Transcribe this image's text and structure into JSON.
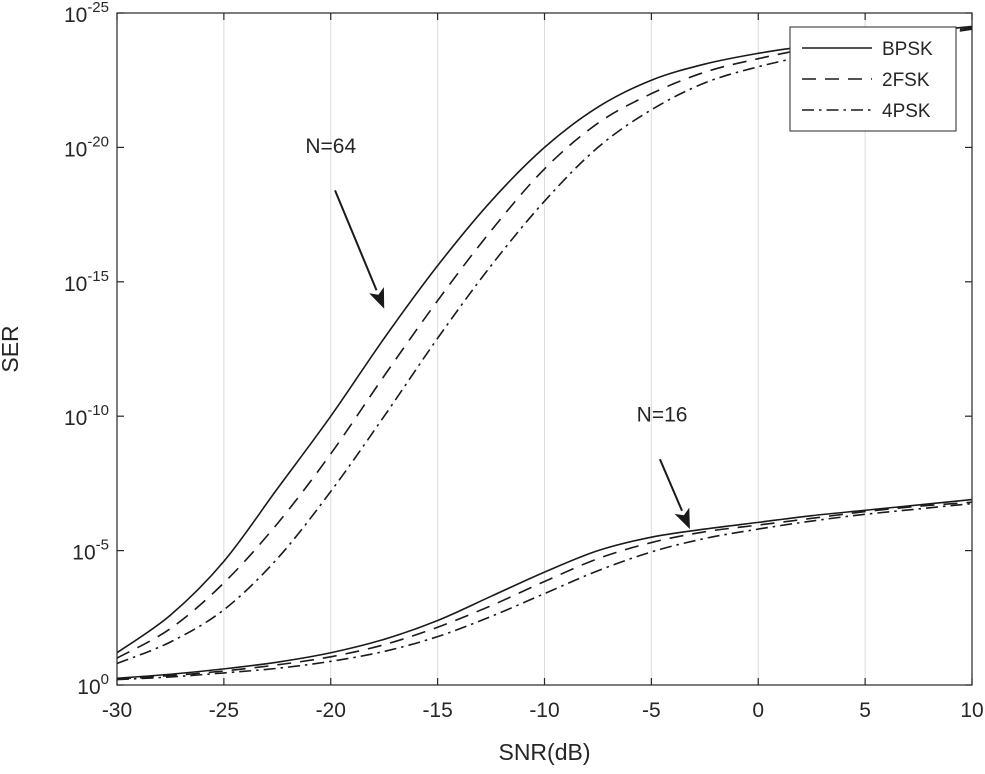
{
  "chart_data": {
    "type": "line",
    "title": "",
    "xlabel": "SNR(dB)",
    "ylabel": "SER",
    "y_scale": "log",
    "xlim": [
      -30,
      10
    ],
    "ylim_exponents": [
      -25,
      0
    ],
    "x_ticks": [
      -30,
      -25,
      -20,
      -15,
      -10,
      -5,
      0,
      5,
      10
    ],
    "x_tick_labels": [
      "-30",
      "-25",
      "-20",
      "-15",
      "-10",
      "-5",
      "0",
      "5",
      "10"
    ],
    "y_tick_exponents": [
      0,
      -5,
      -10,
      -15,
      -20,
      -25
    ],
    "y_tick_labels": [
      {
        "base": "10",
        "exp": "0"
      },
      {
        "base": "10",
        "exp": "-5"
      },
      {
        "base": "10",
        "exp": "-10"
      },
      {
        "base": "10",
        "exp": "-15"
      },
      {
        "base": "10",
        "exp": "-20"
      },
      {
        "base": "10",
        "exp": "-25"
      }
    ],
    "grid": true,
    "legend_position": "top-right",
    "legend": [
      {
        "label": "BPSK",
        "style": "solid"
      },
      {
        "label": "2FSK",
        "style": "dashed"
      },
      {
        "label": "4PSK",
        "style": "dashdot"
      }
    ],
    "x": [
      -30,
      -27.5,
      -25,
      -22.5,
      -20,
      -17.5,
      -15,
      -12.5,
      -10,
      -7.5,
      -5,
      -2.5,
      0,
      2.5,
      5,
      7.5,
      10
    ],
    "series": [
      {
        "name": "BPSK",
        "group": "N=16",
        "style": "solid",
        "log10_values": [
          -0.25,
          -0.4,
          -0.6,
          -0.85,
          -1.2,
          -1.7,
          -2.4,
          -3.3,
          -4.2,
          -5.0,
          -5.5,
          -5.8,
          -6.05,
          -6.3,
          -6.5,
          -6.7,
          -6.9
        ]
      },
      {
        "name": "2FSK",
        "group": "N=16",
        "style": "dashed",
        "log10_values": [
          -0.22,
          -0.35,
          -0.52,
          -0.75,
          -1.05,
          -1.5,
          -2.15,
          -2.95,
          -3.85,
          -4.7,
          -5.3,
          -5.7,
          -5.95,
          -6.2,
          -6.45,
          -6.65,
          -6.8
        ]
      },
      {
        "name": "4PSK",
        "group": "N=16",
        "style": "dashdot",
        "log10_values": [
          -0.2,
          -0.3,
          -0.45,
          -0.62,
          -0.88,
          -1.25,
          -1.8,
          -2.55,
          -3.4,
          -4.25,
          -4.95,
          -5.45,
          -5.8,
          -6.1,
          -6.35,
          -6.55,
          -6.75
        ]
      },
      {
        "name": "BPSK",
        "group": "N=64",
        "style": "solid",
        "log10_values": [
          -1.2,
          -2.6,
          -4.6,
          -7.3,
          -10.0,
          -12.9,
          -15.6,
          -18.0,
          -20.0,
          -21.5,
          -22.5,
          -23.1,
          -23.5,
          -23.8,
          -24.1,
          -24.3,
          -24.5
        ]
      },
      {
        "name": "2FSK",
        "group": "N=64",
        "style": "dashed",
        "log10_values": [
          -1.0,
          -2.1,
          -3.8,
          -6.0,
          -8.6,
          -11.5,
          -14.3,
          -16.9,
          -19.2,
          -20.9,
          -22.0,
          -22.8,
          -23.3,
          -23.7,
          -24.0,
          -24.2,
          -24.45
        ]
      },
      {
        "name": "4PSK",
        "group": "N=64",
        "style": "dashdot",
        "log10_values": [
          -0.8,
          -1.6,
          -2.8,
          -4.7,
          -7.2,
          -10.0,
          -12.9,
          -15.6,
          -18.0,
          -20.0,
          -21.4,
          -22.4,
          -23.0,
          -23.45,
          -23.85,
          -24.1,
          -24.4
        ]
      }
    ],
    "annotations": [
      {
        "text": "N=16",
        "label_x": -4.5,
        "label_y_exp": -9.8,
        "arrow_from_x": -4.6,
        "arrow_from_y_exp": -8.4,
        "arrow_to_x": -3.2,
        "arrow_to_y_exp": -5.8
      },
      {
        "text": "N=64",
        "label_x": -20.0,
        "label_y_exp": -19.8,
        "arrow_from_x": -19.8,
        "arrow_from_y_exp": -18.4,
        "arrow_to_x": -17.5,
        "arrow_to_y_exp": -14.0
      }
    ]
  }
}
